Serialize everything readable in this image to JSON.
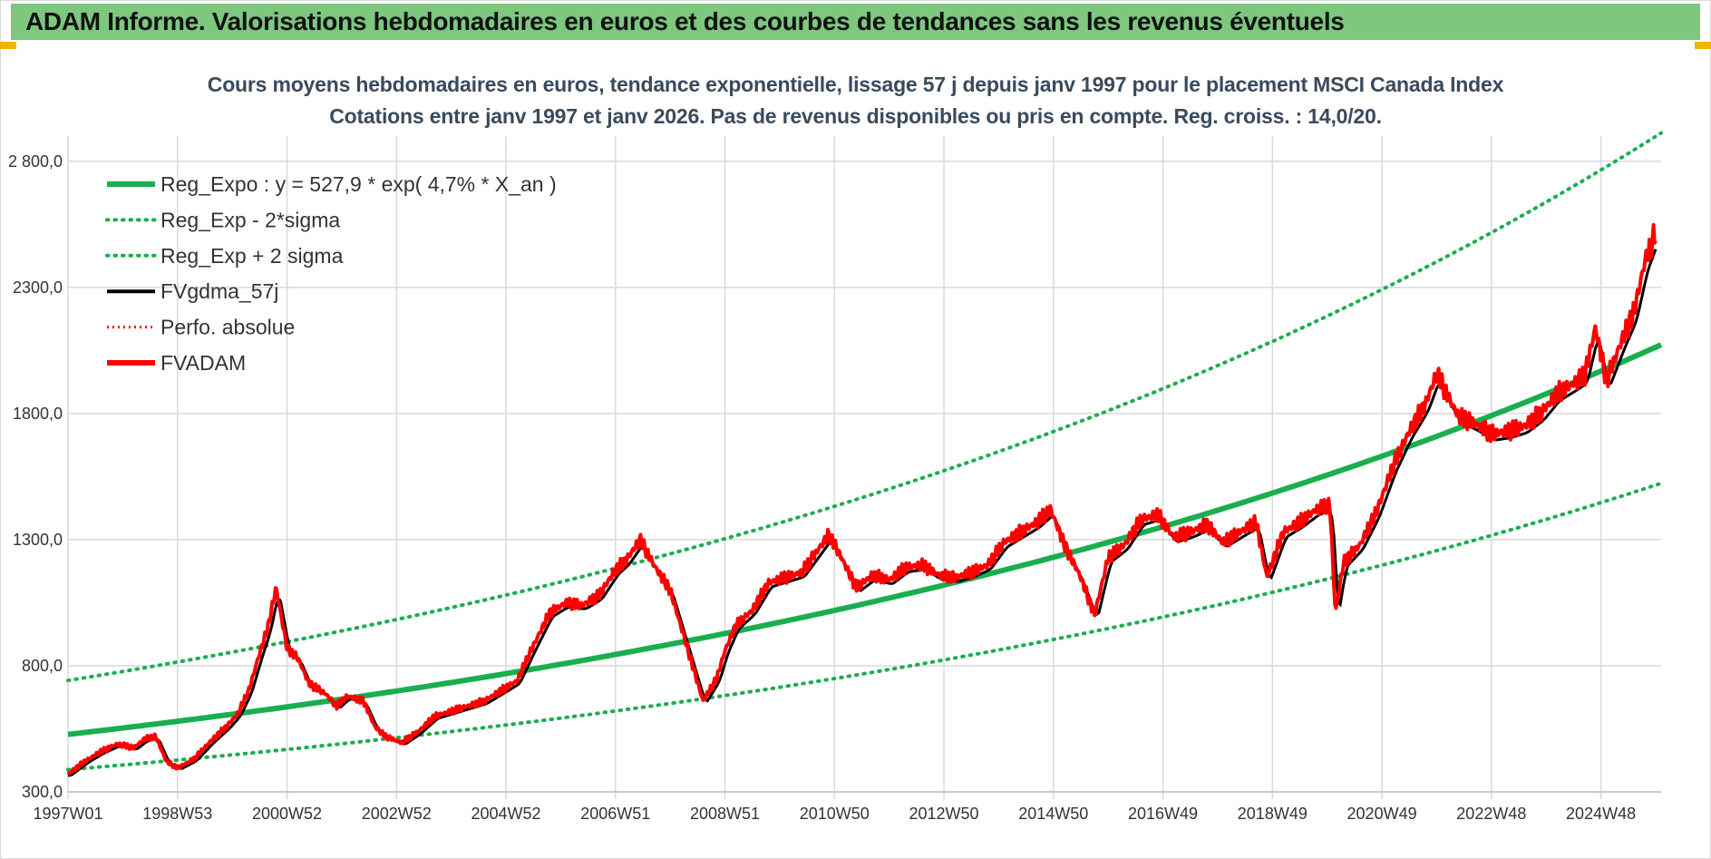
{
  "header": {
    "title": "ADAM Informe. Valorisations hebdomadaires en euros et des courbes de tendances sans les revenus éventuels"
  },
  "colors": {
    "header_bg": "#7dc77f",
    "trend": "#1aae4f",
    "sigma": "#1aae4f",
    "smooth": "#000000",
    "perf": "#ff0000",
    "fvadam": "#ff0000",
    "grid": "#d9d9d9"
  },
  "chart_data": {
    "type": "line",
    "title": "Cours moyens hebdomadaires en euros, tendance exponentielle, lissage 57 j depuis janv 1997 pour le placement MSCI Canada Index",
    "subtitle": "Cotations entre janv 1997 et janv 2026. Pas de revenus disponibles ou pris en compte. Reg. croiss. : 14,0/20.",
    "ylim": [
      300,
      2900
    ],
    "yticks": [
      "300,0",
      "800,0",
      "1300,0",
      "1800,0",
      "2300,0",
      "2 800,0"
    ],
    "ytick_values": [
      300,
      800,
      1300,
      1800,
      2300,
      2800
    ],
    "xlim": [
      1997.0,
      2026.1
    ],
    "xticks": [
      "1997W01",
      "1998W53",
      "2000W52",
      "2002W52",
      "2004W52",
      "2006W51",
      "2008W51",
      "2010W50",
      "2012W50",
      "2014W50",
      "2016W49",
      "2018W49",
      "2020W49",
      "2022W48",
      "2024W48"
    ],
    "xtick_values": [
      1997.0,
      1999.0,
      2001.0,
      2003.0,
      2005.0,
      2007.0,
      2009.0,
      2011.0,
      2013.0,
      2015.0,
      2017.0,
      2019.0,
      2021.0,
      2023.0,
      2025.0
    ],
    "grid": true,
    "legend_position": "top-left",
    "trend_model": {
      "a": 527.9,
      "rate": 0.047,
      "x0": 1997.0,
      "sigma_factor_low": 0.735,
      "sigma_factor_high": 1.405
    },
    "series": [
      {
        "name": "Reg_Expo : y = 527,9 * exp( 4,7% *  X_an )",
        "style": "solid-thick",
        "color": "#1aae4f"
      },
      {
        "name": "Reg_Exp - 2*sigma",
        "style": "dotted",
        "color": "#1aae4f"
      },
      {
        "name": "Reg_Exp + 2 sigma",
        "style": "dotted",
        "color": "#1aae4f"
      },
      {
        "name": "FVgdma_57j",
        "style": "solid",
        "color": "#000000"
      },
      {
        "name": "Perfo. absolue",
        "style": "dotted-thin",
        "color": "#ff0000"
      },
      {
        "name": "FVADAM",
        "style": "solid-thick",
        "color": "#ff0000",
        "x": [
          1997.0,
          1997.3,
          1997.6,
          1997.9,
          1998.2,
          1998.4,
          1998.6,
          1998.8,
          1999.0,
          1999.3,
          1999.6,
          1999.9,
          2000.1,
          2000.3,
          2000.5,
          2000.65,
          2000.8,
          2001.0,
          2001.2,
          2001.4,
          2001.7,
          2001.9,
          2002.1,
          2002.4,
          2002.6,
          2002.8,
          2003.1,
          2003.4,
          2003.7,
          2004.0,
          2004.3,
          2004.6,
          2004.9,
          2005.2,
          2005.5,
          2005.8,
          2006.1,
          2006.4,
          2006.7,
          2007.0,
          2007.2,
          2007.45,
          2007.7,
          2008.0,
          2008.3,
          2008.6,
          2008.85,
          2009.0,
          2009.2,
          2009.5,
          2009.8,
          2010.1,
          2010.4,
          2010.7,
          2010.9,
          2011.1,
          2011.4,
          2011.7,
          2012.0,
          2012.3,
          2012.6,
          2012.9,
          2013.2,
          2013.5,
          2013.8,
          2014.1,
          2014.4,
          2014.7,
          2014.95,
          2015.2,
          2015.5,
          2015.75,
          2016.0,
          2016.3,
          2016.6,
          2016.9,
          2017.2,
          2017.5,
          2017.8,
          2018.1,
          2018.4,
          2018.7,
          2018.9,
          2019.2,
          2019.5,
          2019.8,
          2020.05,
          2020.15,
          2020.3,
          2020.6,
          2020.9,
          2021.2,
          2021.5,
          2021.8,
          2022.0,
          2022.2,
          2022.4,
          2022.7,
          2023.0,
          2023.3,
          2023.6,
          2023.9,
          2024.2,
          2024.5,
          2024.7,
          2024.9,
          2025.1,
          2025.4,
          2025.6,
          2025.8,
          2026.0
        ],
        "values": [
          370,
          420,
          460,
          490,
          475,
          510,
          520,
          420,
          395,
          430,
          500,
          560,
          610,
          700,
          850,
          950,
          1110,
          870,
          830,
          730,
          690,
          640,
          680,
          660,
          560,
          520,
          495,
          540,
          600,
          620,
          640,
          660,
          700,
          740,
          880,
          1010,
          1050,
          1040,
          1080,
          1180,
          1220,
          1300,
          1200,
          1100,
          880,
          660,
          750,
          860,
          960,
          1020,
          1130,
          1150,
          1170,
          1260,
          1320,
          1240,
          1110,
          1160,
          1140,
          1190,
          1200,
          1160,
          1150,
          1170,
          1200,
          1290,
          1330,
          1370,
          1420,
          1280,
          1150,
          1000,
          1230,
          1280,
          1380,
          1400,
          1310,
          1330,
          1360,
          1290,
          1330,
          1370,
          1150,
          1330,
          1370,
          1420,
          1440,
          1010,
          1210,
          1280,
          1410,
          1590,
          1730,
          1840,
          1960,
          1870,
          1790,
          1760,
          1720,
          1730,
          1750,
          1800,
          1880,
          1920,
          1950,
          2140,
          1930,
          2100,
          2200,
          2400,
          2520
        ]
      }
    ]
  }
}
